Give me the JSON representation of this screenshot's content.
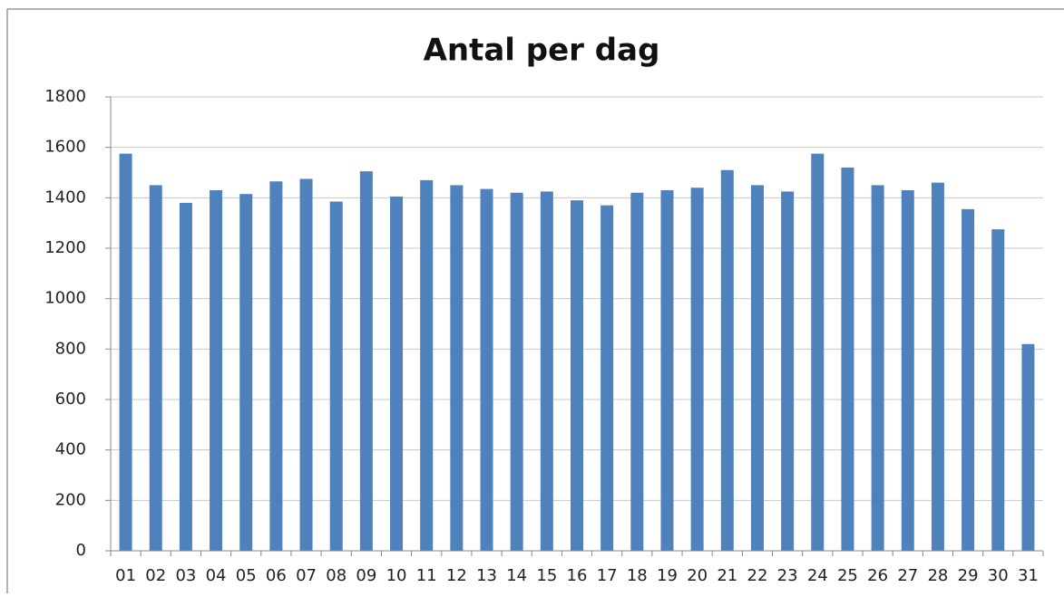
{
  "chart_data": {
    "type": "bar",
    "title": "Antal per dag",
    "categories": [
      "01",
      "02",
      "03",
      "04",
      "05",
      "06",
      "07",
      "08",
      "09",
      "10",
      "11",
      "12",
      "13",
      "14",
      "15",
      "16",
      "17",
      "18",
      "19",
      "20",
      "21",
      "22",
      "23",
      "24",
      "25",
      "26",
      "27",
      "28",
      "29",
      "30",
      "31"
    ],
    "values": [
      1575,
      1450,
      1380,
      1430,
      1415,
      1465,
      1475,
      1385,
      1505,
      1405,
      1470,
      1450,
      1435,
      1420,
      1425,
      1390,
      1370,
      1420,
      1430,
      1440,
      1510,
      1450,
      1425,
      1575,
      1520,
      1450,
      1430,
      1460,
      1355,
      1275,
      820
    ],
    "color": "#4f81bd",
    "ylim": [
      0,
      1800
    ],
    "yticks": [
      0,
      200,
      400,
      600,
      800,
      1000,
      1200,
      1400,
      1600,
      1800
    ],
    "grid": true
  }
}
